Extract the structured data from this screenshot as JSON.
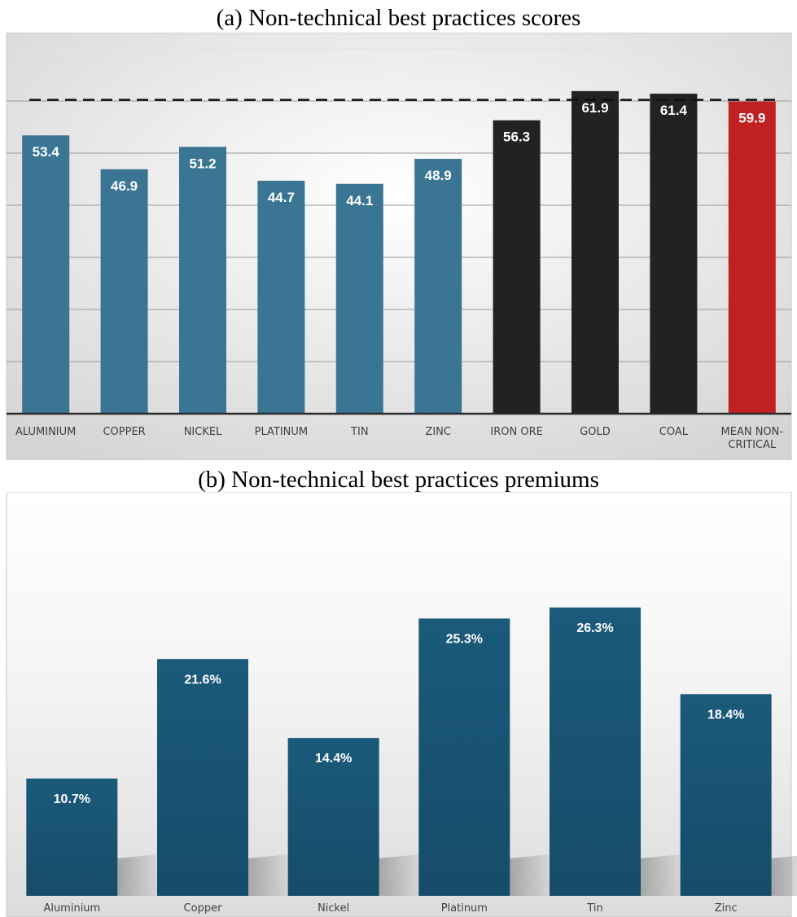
{
  "captions": {
    "a": "(a)   Non-technical best practices scores",
    "b": "(b)   Non-technical best practices premiums"
  },
  "colors": {
    "critical_bar": "#3a7694",
    "non_critical_bar": "#222222",
    "mean_bar": "#c0201f",
    "premium_bar": "#1b5a7a"
  },
  "chart_data": [
    {
      "type": "bar",
      "title": "",
      "xlabel": "",
      "ylabel": "",
      "categories": [
        "ALUMINIUM",
        "COPPER",
        "NICKEL",
        "PLATINUM",
        "TIN",
        "ZINC",
        "IRON ORE",
        "GOLD",
        "COAL",
        "MEAN NON-CRITICAL"
      ],
      "tick_labels": [
        [
          "ALUMINIUM"
        ],
        [
          "COPPER"
        ],
        [
          "NICKEL"
        ],
        [
          "PLATINUM"
        ],
        [
          "TIN"
        ],
        [
          "ZINC"
        ],
        [
          "IRON ORE"
        ],
        [
          "GOLD"
        ],
        [
          "COAL"
        ],
        [
          "MEAN NON-",
          "CRITICAL"
        ]
      ],
      "values": [
        53.4,
        46.9,
        51.2,
        44.7,
        44.1,
        48.9,
        56.3,
        61.9,
        61.4,
        59.9
      ],
      "value_labels": [
        "53.4",
        "46.9",
        "51.2",
        "44.7",
        "44.1",
        "48.9",
        "56.3",
        "61.9",
        "61.4",
        "59.9"
      ],
      "bar_colors": [
        "#3a7694",
        "#3a7694",
        "#3a7694",
        "#3a7694",
        "#3a7694",
        "#3a7694",
        "#222222",
        "#222222",
        "#222222",
        "#c0201f"
      ],
      "reference_line": {
        "value": 59.9,
        "style": "dashed"
      },
      "ylim": [
        0,
        70
      ],
      "grid": true
    },
    {
      "type": "bar",
      "title": "",
      "xlabel": "",
      "ylabel": "",
      "categories": [
        "Aluminium",
        "Copper",
        "Nickel",
        "Platinum",
        "Tin",
        "Zinc"
      ],
      "values": [
        10.7,
        21.6,
        14.4,
        25.3,
        26.3,
        18.4
      ],
      "value_labels": [
        "10.7%",
        "21.6%",
        "14.4%",
        "25.3%",
        "26.3%",
        "18.4%"
      ],
      "ylim": [
        0,
        30
      ],
      "grid": false
    }
  ]
}
